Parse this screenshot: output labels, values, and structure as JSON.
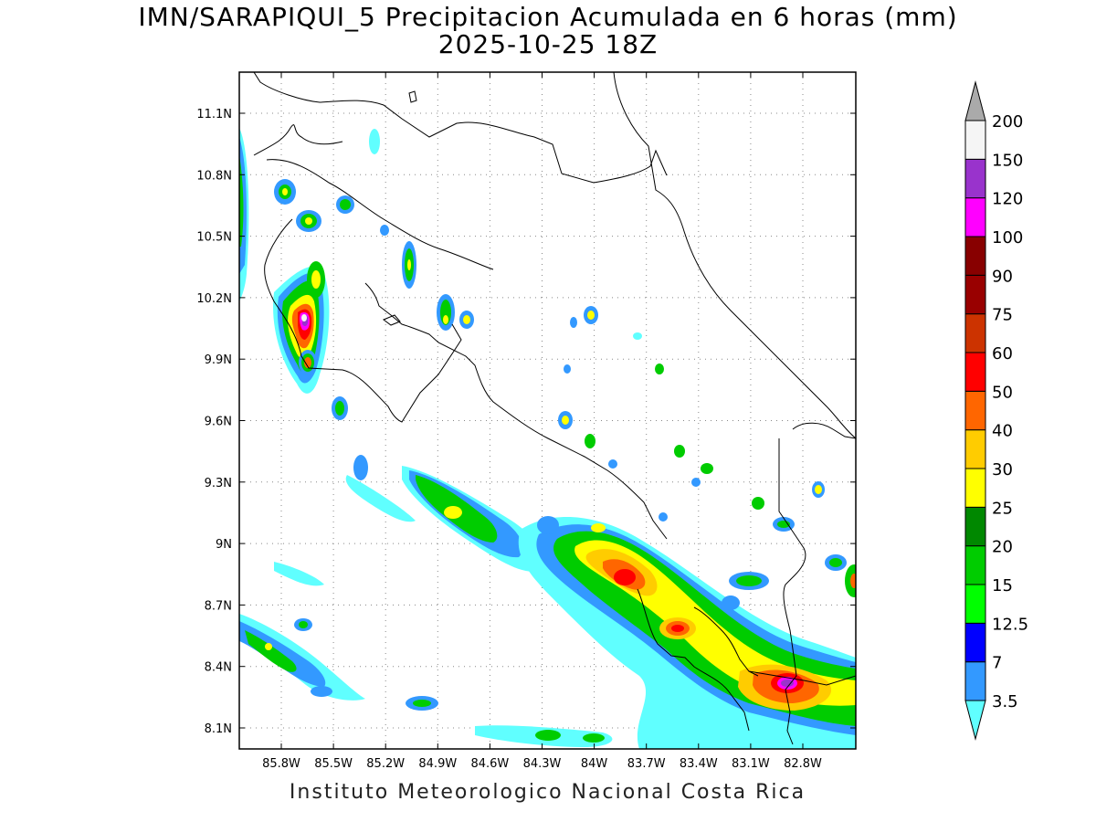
{
  "header": {
    "title_line1": "IMN/SARAPIQUI_5 Precipitacion Acumulada en 6 horas (mm)",
    "title_line2": "2025-10-25 18Z"
  },
  "footer": {
    "credit": "Instituto Meteorologico Nacional Costa Rica"
  },
  "axes": {
    "lon_labels": [
      "85.8W",
      "85.5W",
      "85.2W",
      "84.9W",
      "84.6W",
      "84.3W",
      "84W",
      "83.7W",
      "83.4W",
      "83.1W",
      "82.8W"
    ],
    "lat_labels": [
      "11.1N",
      "10.8N",
      "10.5N",
      "10.2N",
      "9.9N",
      "9.6N",
      "9.3N",
      "9N",
      "8.7N",
      "8.4N",
      "8.1N"
    ]
  },
  "colorbar": {
    "levels": [
      "3.5",
      "7",
      "12.5",
      "15",
      "20",
      "25",
      "30",
      "40",
      "50",
      "60",
      "75",
      "90",
      "100",
      "120",
      "150",
      "200"
    ],
    "colors": [
      "#60ffff",
      "#3399ff",
      "#0000ff",
      "#00ff00",
      "#00cc00",
      "#008800",
      "#ffff00",
      "#ffcc00",
      "#ff6600",
      "#ff0000",
      "#cc3300",
      "#990000",
      "#880000",
      "#ff00ff",
      "#9933cc",
      "#f5f5f5",
      "#aaaaaa"
    ]
  },
  "precip_colors": {
    "c1": "#60ffff",
    "c2": "#3399ff",
    "c3": "#0000ff",
    "c4": "#00ff00",
    "c5": "#00cc00",
    "c6": "#008800",
    "c7": "#ffff00",
    "c8": "#ffcc00",
    "c9": "#ff6600",
    "c10": "#ff0000",
    "c11": "#9933cc",
    "c12": "#ff00ff"
  }
}
